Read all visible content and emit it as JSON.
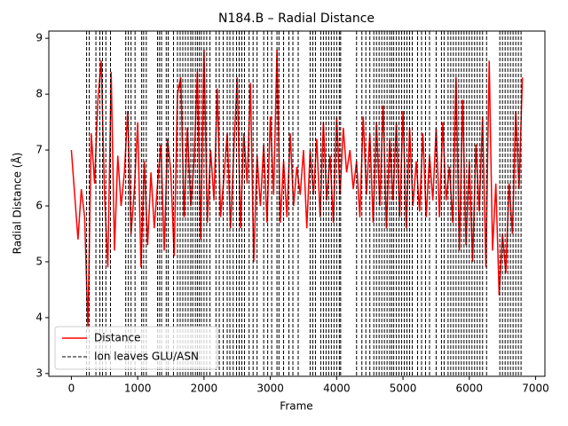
{
  "chart_data": {
    "type": "line",
    "title": "N184.B – Radial Distance",
    "xlabel": "Frame",
    "ylabel": "Radial Distance (Å)",
    "x": [
      0,
      50,
      100,
      150,
      200,
      250,
      300,
      350,
      400,
      450,
      500,
      550,
      600,
      650,
      700,
      750,
      800,
      850,
      900,
      950,
      1000,
      1050,
      1100,
      1150,
      1200,
      1250,
      1300,
      1350,
      1400,
      1450,
      1500,
      1550,
      1600,
      1650,
      1700,
      1750,
      1800,
      1850,
      1900,
      1950,
      2000,
      2050,
      2100,
      2150,
      2200,
      2250,
      2300,
      2350,
      2400,
      2450,
      2500,
      2550,
      2600,
      2650,
      2700,
      2750,
      2800,
      2850,
      2900,
      2950,
      3000,
      3050,
      3100,
      3150,
      3200,
      3250,
      3300,
      3350,
      3400,
      3450,
      3500,
      3550,
      3600,
      3650,
      3700,
      3750,
      3800,
      3850,
      3900,
      3950,
      4000,
      4050,
      4100,
      4150,
      4200,
      4250,
      4300,
      4350,
      4400,
      4450,
      4500,
      4550,
      4600,
      4650,
      4700,
      4750,
      4800,
      4850,
      4900,
      4950,
      5000,
      5050,
      5100,
      5150,
      5200,
      5250,
      5300,
      5350,
      5400,
      5450,
      5500,
      5550,
      5600,
      5650,
      5700,
      5750,
      5800,
      5850,
      5900,
      5950,
      6000,
      6050,
      6100,
      6150,
      6200,
      6250,
      6300,
      6350,
      6400,
      6450,
      6500,
      6550,
      6600,
      6650,
      6700,
      6750,
      6800
    ],
    "series": [
      {
        "name": "Distance",
        "color": "#ff0000",
        "values": [
          7.0,
          6.2,
          5.4,
          6.3,
          5.8,
          3.8,
          7.3,
          6.4,
          7.9,
          8.6,
          6.2,
          4.9,
          8.4,
          5.2,
          6.9,
          6.0,
          6.6,
          7.7,
          5.5,
          6.3,
          7.5,
          4.9,
          6.8,
          5.3,
          6.6,
          5.6,
          6.4,
          7.1,
          5.2,
          7.2,
          6.6,
          5.1,
          8.0,
          8.3,
          5.8,
          7.4,
          6.0,
          6.8,
          8.4,
          5.4,
          8.8,
          5.7,
          7.0,
          6.1,
          8.1,
          5.8,
          6.5,
          7.3,
          5.6,
          7.0,
          8.3,
          5.6,
          7.3,
          6.4,
          8.2,
          5.0,
          6.9,
          6.0,
          7.1,
          5.7,
          7.6,
          6.2,
          8.8,
          5.7,
          6.8,
          5.8,
          7.3,
          6.0,
          6.7,
          6.2,
          7.0,
          5.6,
          7.0,
          6.2,
          7.2,
          5.8,
          7.5,
          6.1,
          6.9,
          5.7,
          7.6,
          6.2,
          7.4,
          6.6,
          7.0,
          6.3,
          6.8,
          5.8,
          7.6,
          6.2,
          7.3,
          5.7,
          7.5,
          6.0,
          7.8,
          5.6,
          7.2,
          6.1,
          7.5,
          5.8,
          7.7,
          5.6,
          7.4,
          6.0,
          6.8,
          5.9,
          7.3,
          5.8,
          6.9,
          6.1,
          7.4,
          5.8,
          7.5,
          6.1,
          6.7,
          5.7,
          8.3,
          5.2,
          7.9,
          5.3,
          6.8,
          5.0,
          7.1,
          5.9,
          7.6,
          4.9,
          8.6,
          5.2,
          6.4,
          4.4,
          5.5,
          4.8,
          6.4,
          5.5,
          7.7,
          6.3,
          8.3
        ]
      }
    ],
    "vlines": {
      "name": "Ion leaves GLU/ASN",
      "color": "#000000",
      "x": [
        230,
        270,
        370,
        430,
        470,
        520,
        590,
        820,
        860,
        900,
        960,
        1060,
        1090,
        1130,
        1300,
        1330,
        1360,
        1430,
        1460,
        1540,
        1600,
        1640,
        1680,
        1720,
        1760,
        1800,
        1830,
        1870,
        1900,
        1930,
        1960,
        2000,
        2040,
        2090,
        2180,
        2230,
        2290,
        2350,
        2390,
        2440,
        2490,
        2530,
        2570,
        2610,
        2680,
        2740,
        2800,
        2900,
        2960,
        3020,
        3100,
        3130,
        3200,
        3280,
        3340,
        3420,
        3600,
        3640,
        3680,
        3760,
        3800,
        3840,
        3880,
        3920,
        3960,
        4000,
        4040,
        4060,
        4300,
        4380,
        4440,
        4500,
        4560,
        4600,
        4640,
        4680,
        4720,
        4760,
        4800,
        4830,
        4860,
        4900,
        4940,
        4980,
        5020,
        5060,
        5100,
        5140,
        5220,
        5280,
        5340,
        5400,
        5500,
        5580,
        5620,
        5680,
        5720,
        5760,
        5800,
        5840,
        5880,
        5920,
        5960,
        6000,
        6040,
        6080,
        6120,
        6160,
        6200,
        6260,
        6460,
        6500,
        6540,
        6580,
        6620,
        6660,
        6700,
        6740,
        6780
      ]
    },
    "xlim": [
      -340,
      7140
    ],
    "ylim": [
      2.95,
      9.13
    ],
    "xticks": [
      0,
      1000,
      2000,
      3000,
      4000,
      5000,
      6000,
      7000
    ],
    "yticks": [
      3,
      4,
      5,
      6,
      7,
      8,
      9
    ],
    "legend": "lower left"
  }
}
